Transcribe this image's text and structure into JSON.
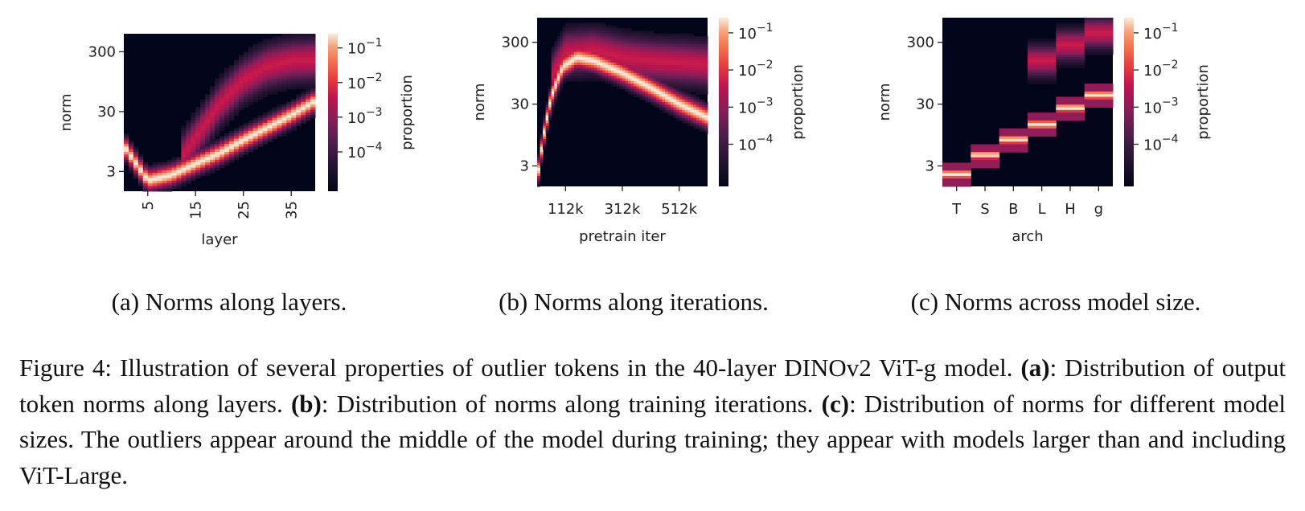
{
  "colors": {
    "colormap": [
      "#03051a",
      "#221331",
      "#4c1d4b",
      "#841e5a",
      "#c0154e",
      "#e83f3f",
      "#f27550",
      "#f6a47e",
      "#faebdd"
    ]
  },
  "chart_data": [
    {
      "type": "heatmap",
      "xlabel": "layer",
      "ylabel": "norm",
      "x_ticks": [
        "5",
        "15",
        "25",
        "35"
      ],
      "y_ticks": [
        "300",
        "30",
        "3"
      ],
      "colorbar_label": "proportion",
      "colorbar_ticks": [
        "−1",
        "−2",
        "−3",
        "−4"
      ],
      "colorbar_scale": "log",
      "x_range": [
        0,
        40
      ],
      "y_scale": "log",
      "y_range": [
        1.4,
        600
      ],
      "main_band": [
        {
          "x": 0,
          "y": 8
        },
        {
          "x": 5,
          "y": 2.1
        },
        {
          "x": 10,
          "y": 2.6
        },
        {
          "x": 15,
          "y": 4
        },
        {
          "x": 20,
          "y": 6
        },
        {
          "x": 25,
          "y": 10
        },
        {
          "x": 30,
          "y": 16
        },
        {
          "x": 35,
          "y": 26
        },
        {
          "x": 40,
          "y": 45
        }
      ],
      "outlier_band": [
        {
          "x": 12,
          "y": 5
        },
        {
          "x": 16,
          "y": 14
        },
        {
          "x": 20,
          "y": 40
        },
        {
          "x": 25,
          "y": 100
        },
        {
          "x": 30,
          "y": 170
        },
        {
          "x": 35,
          "y": 210
        },
        {
          "x": 40,
          "y": 220
        }
      ],
      "subcaption": "(a) Norms along layers."
    },
    {
      "type": "heatmap",
      "xlabel": "pretrain iter",
      "ylabel": "norm",
      "x_ticks": [
        "112k",
        "312k",
        "512k"
      ],
      "y_ticks": [
        "300",
        "30",
        "3"
      ],
      "colorbar_label": "proportion",
      "colorbar_ticks": [
        "−1",
        "−2",
        "−3",
        "−4"
      ],
      "colorbar_scale": "log",
      "x_range": [
        12000,
        612000
      ],
      "y_scale": "log",
      "y_range": [
        1.4,
        750
      ],
      "main_band": [
        {
          "x": 12000,
          "y": 1.8
        },
        {
          "x": 32000,
          "y": 8
        },
        {
          "x": 62000,
          "y": 40
        },
        {
          "x": 102000,
          "y": 120
        },
        {
          "x": 152000,
          "y": 170
        },
        {
          "x": 212000,
          "y": 150
        },
        {
          "x": 312000,
          "y": 95
        },
        {
          "x": 412000,
          "y": 55
        },
        {
          "x": 512000,
          "y": 30
        },
        {
          "x": 612000,
          "y": 18
        }
      ],
      "outlier_band": [
        {
          "x": 62000,
          "y": 80
        },
        {
          "x": 112000,
          "y": 200
        },
        {
          "x": 212000,
          "y": 220
        },
        {
          "x": 312000,
          "y": 170
        },
        {
          "x": 412000,
          "y": 150
        },
        {
          "x": 512000,
          "y": 140
        },
        {
          "x": 612000,
          "y": 130
        }
      ],
      "subcaption": "(b) Norms along iterations."
    },
    {
      "type": "heatmap",
      "xlabel": "arch",
      "ylabel": "norm",
      "x_ticks": [
        "T",
        "S",
        "B",
        "L",
        "H",
        "g"
      ],
      "y_ticks": [
        "300",
        "30",
        "3"
      ],
      "colorbar_label": "proportion",
      "colorbar_ticks": [
        "−1",
        "−2",
        "−3",
        "−4"
      ],
      "colorbar_scale": "log",
      "y_scale": "log",
      "y_range": [
        1.4,
        750
      ],
      "columns": [
        {
          "arch": "T",
          "main_norm": 2.2,
          "outlier_norm": null
        },
        {
          "arch": "S",
          "main_norm": 4.5,
          "outlier_norm": null
        },
        {
          "arch": "B",
          "main_norm": 8,
          "outlier_norm": null
        },
        {
          "arch": "L",
          "main_norm": 14,
          "outlier_norm": 150
        },
        {
          "arch": "H",
          "main_norm": 26,
          "outlier_norm": 270
        },
        {
          "arch": "g",
          "main_norm": 42,
          "outlier_norm": 420
        }
      ],
      "subcaption": "(c) Norms across model size."
    }
  ],
  "caption": {
    "label": "Figure 4:",
    "intro": "Illustration of several properties of outlier tokens in the 40-layer DINOv2 ViT-g model.",
    "a_tag": "(a)",
    "a_text": ": Distribution of output token norms along layers.",
    "b_tag": "(b)",
    "b_text": ": Distribution of norms along training iterations.",
    "c_tag": "(c)",
    "c_text": ": Distribution of norms for different model sizes. The outliers appear around the middle of the model during training; they appear with models larger than and including ViT-Large."
  }
}
